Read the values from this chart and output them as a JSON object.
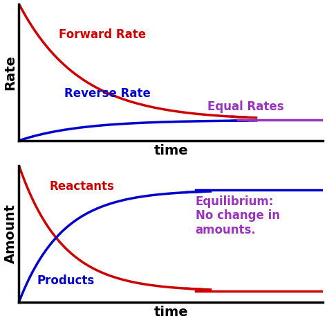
{
  "fig_width": 4.73,
  "fig_height": 4.66,
  "dpi": 100,
  "background_color": "#ffffff",
  "top_chart": {
    "ylabel": "Rate",
    "xlabel": "time",
    "forward_color": "#cc0000",
    "reverse_color": "#0000cc",
    "equal_color": "#9933bb",
    "forward_label": "Forward Rate",
    "reverse_label": "Reverse Rate",
    "equal_label": "Equal Rates",
    "label_fontsize": 12,
    "axis_label_fontsize": 14
  },
  "bottom_chart": {
    "ylabel": "Amount",
    "xlabel": "time",
    "reactant_color": "#cc0000",
    "product_color": "#0000cc",
    "equil_color": "#9933bb",
    "reactant_label": "Reactants",
    "product_label": "Products",
    "equil_label": "Equilibrium:\nNo change in\namounts.",
    "label_fontsize": 12,
    "axis_label_fontsize": 14
  }
}
